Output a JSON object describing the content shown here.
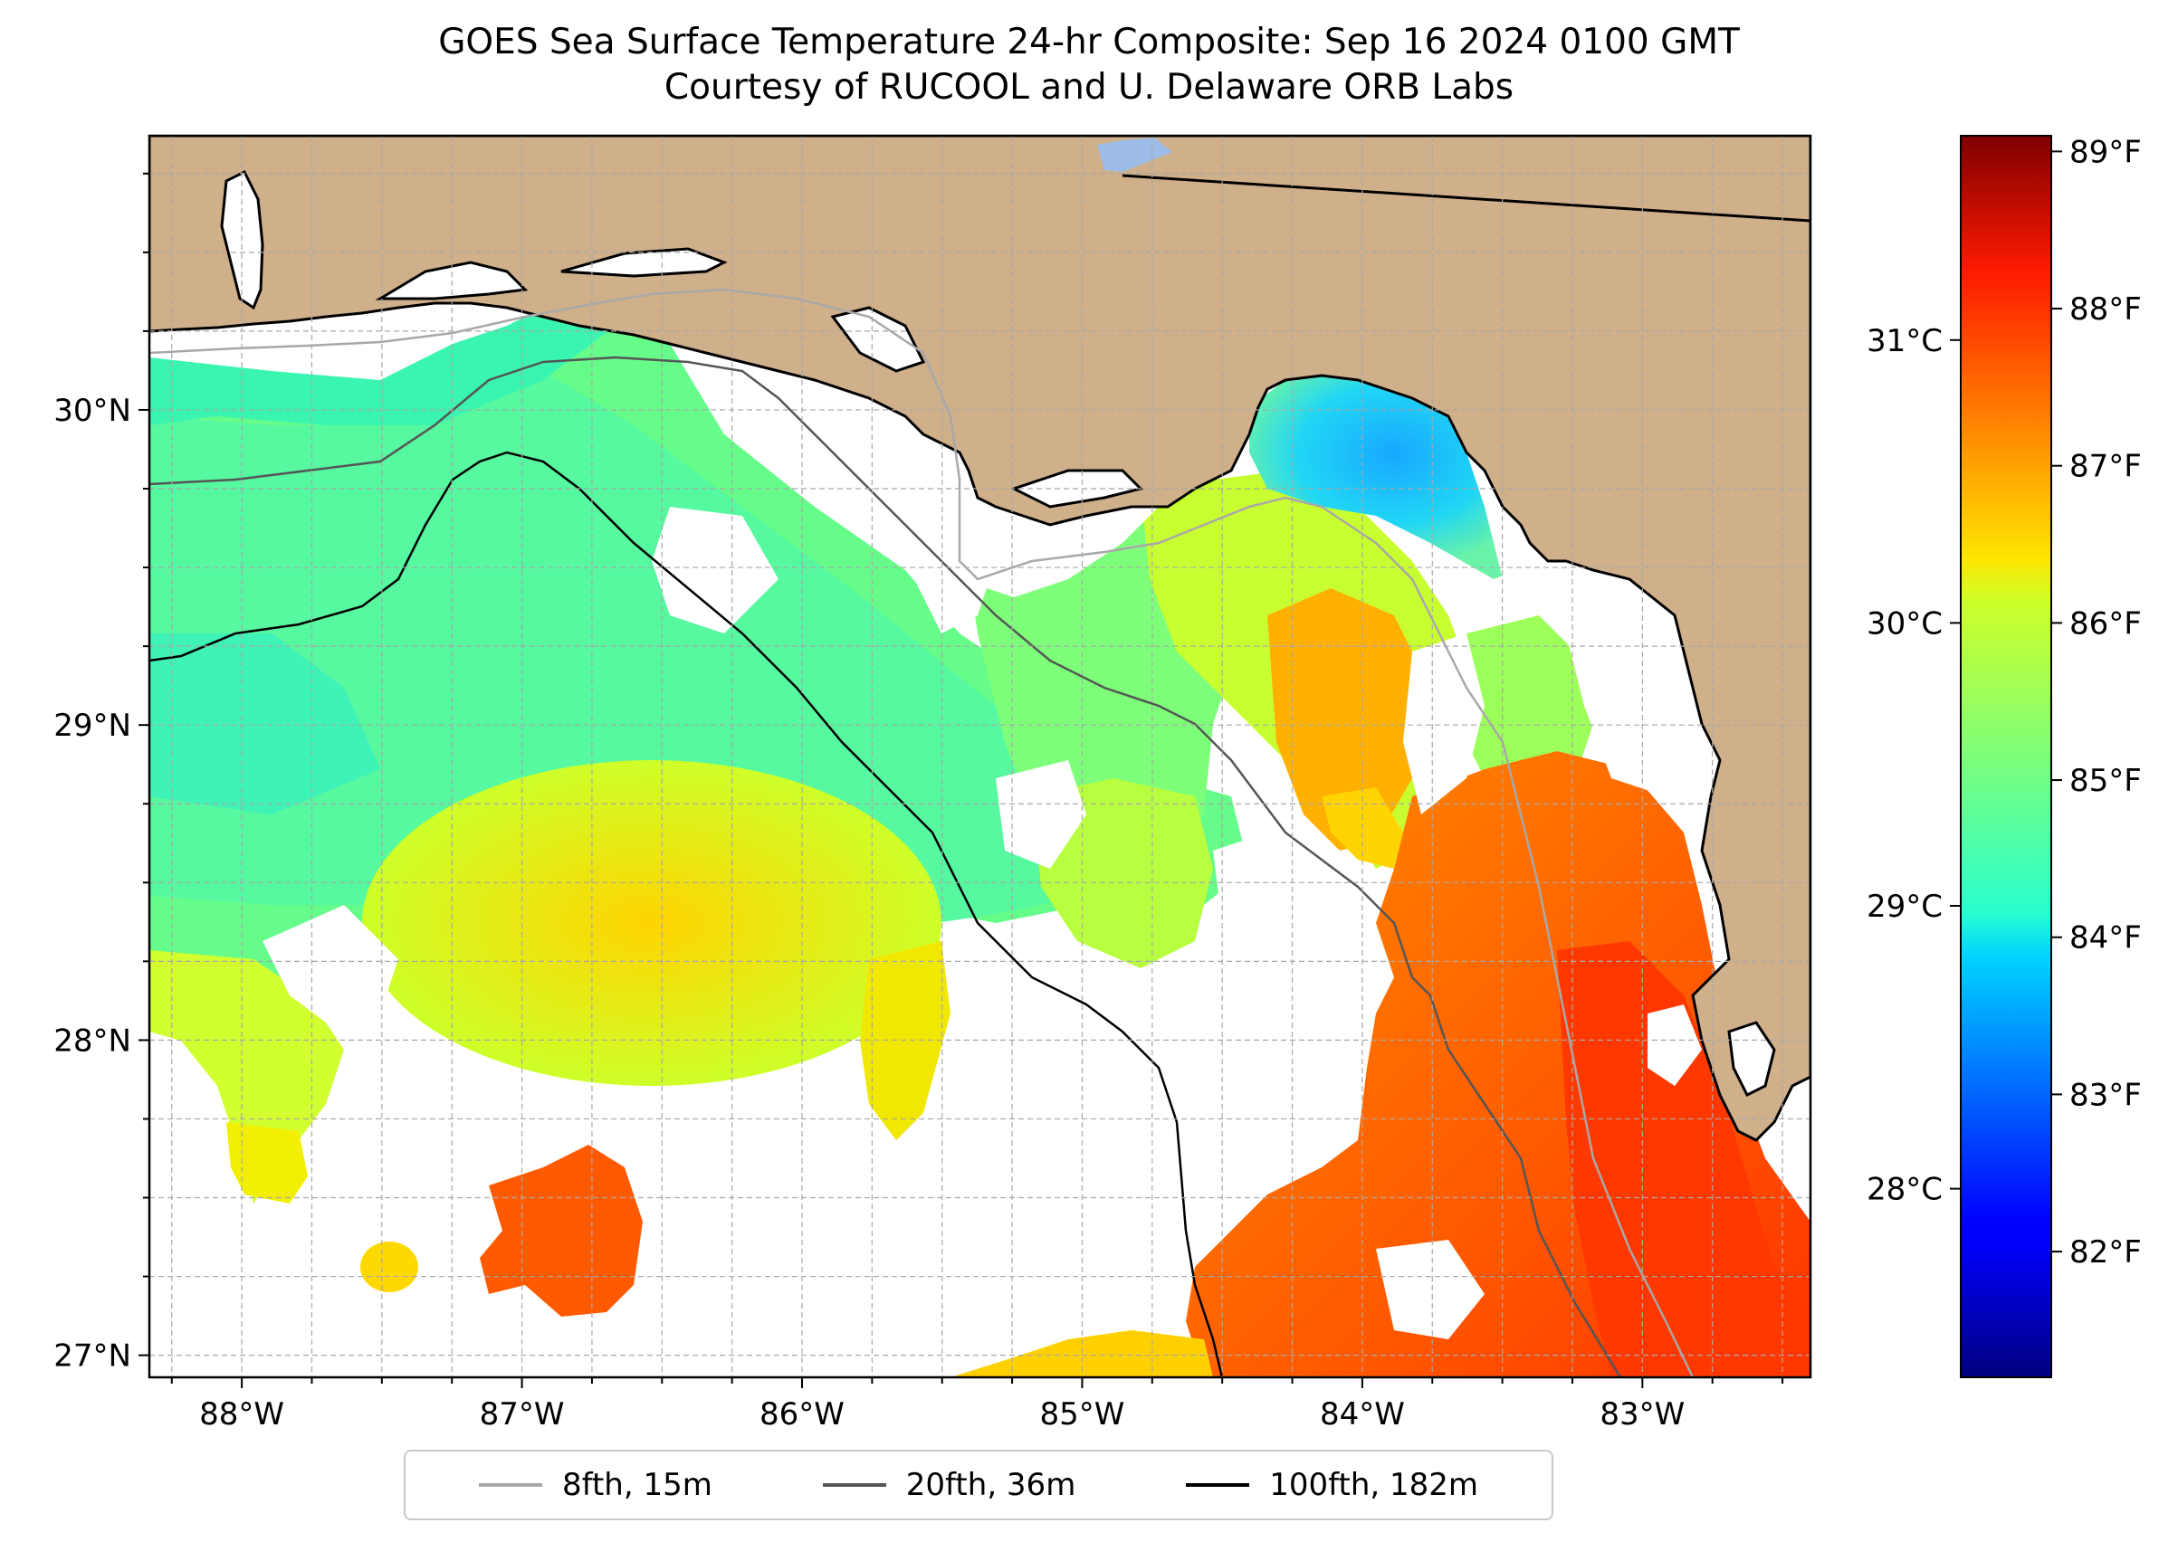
{
  "title": "GOES Sea Surface Temperature 24-hr Composite: Sep 16 2024 0100 GMT",
  "subtitle": "Courtesy of RUCOOL and U. Delaware ORB Labs",
  "map": {
    "lon_range": [
      -88.33,
      -82.4
    ],
    "lat_range": [
      26.93,
      30.87
    ],
    "colors": {
      "land": "#cfb08a",
      "coast": "#000000",
      "lake": "#9dbde8",
      "gridline": "#a8a8a8"
    },
    "lon_ticks": [
      {
        "value": -88,
        "label": "88°W"
      },
      {
        "value": -87,
        "label": "87°W"
      },
      {
        "value": -86,
        "label": "86°W"
      },
      {
        "value": -85,
        "label": "85°W"
      },
      {
        "value": -84,
        "label": "84°W"
      },
      {
        "value": -83,
        "label": "83°W"
      }
    ],
    "lat_ticks": [
      {
        "value": 27,
        "label": "27°N"
      },
      {
        "value": 28,
        "label": "28°N"
      },
      {
        "value": 29,
        "label": "29°N"
      },
      {
        "value": 30,
        "label": "30°N"
      }
    ]
  },
  "colorbar": {
    "colormap": "jet",
    "range_f": [
      81.2,
      89.1
    ],
    "fahrenheit_ticks": [
      {
        "value": 82,
        "label": "82°F"
      },
      {
        "value": 83,
        "label": "83°F"
      },
      {
        "value": 84,
        "label": "84°F"
      },
      {
        "value": 85,
        "label": "85°F"
      },
      {
        "value": 86,
        "label": "86°F"
      },
      {
        "value": 87,
        "label": "87°F"
      },
      {
        "value": 88,
        "label": "88°F"
      },
      {
        "value": 89,
        "label": "89°F"
      }
    ],
    "celsius_ticks": [
      {
        "value": 28,
        "label": "28°C"
      },
      {
        "value": 29,
        "label": "29°C"
      },
      {
        "value": 30,
        "label": "30°C"
      },
      {
        "value": 31,
        "label": "31°C"
      }
    ]
  },
  "legend": [
    {
      "label": "8fth, 15m",
      "color": "#a8a8a8"
    },
    {
      "label": "20fth, 36m",
      "color": "#555555"
    },
    {
      "label": "100fth, 182m",
      "color": "#000000"
    }
  ]
}
